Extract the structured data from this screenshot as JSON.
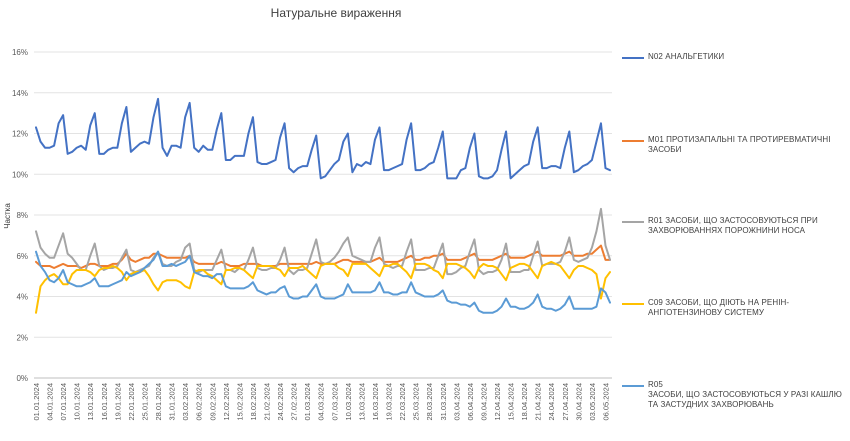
{
  "chart_data": {
    "type": "line",
    "title": "Натуральне вираження",
    "ylabel": "Частка",
    "xlabel": "",
    "ylim": [
      0,
      16
    ],
    "y_ticks": [
      "0%",
      "2%",
      "4%",
      "6%",
      "8%",
      "10%",
      "12%",
      "14%",
      "16%"
    ],
    "grid": "horizontal",
    "legend_position": "right",
    "x": [
      "01.01.2024",
      "02.01.2024",
      "03.01.2024",
      "04.01.2024",
      "05.01.2024",
      "06.01.2024",
      "07.01.2024",
      "08.01.2024",
      "09.01.2024",
      "10.01.2024",
      "11.01.2024",
      "12.01.2024",
      "13.01.2024",
      "14.01.2024",
      "15.01.2024",
      "16.01.2024",
      "17.01.2024",
      "18.01.2024",
      "19.01.2024",
      "20.01.2024",
      "21.01.2024",
      "22.01.2024",
      "23.01.2024",
      "24.01.2024",
      "25.01.2024",
      "26.01.2024",
      "27.01.2024",
      "28.01.2024",
      "29.01.2024",
      "30.01.2024",
      "31.01.2024",
      "01.02.2024",
      "02.02.2024",
      "03.02.2024",
      "04.02.2024",
      "05.02.2024",
      "06.02.2024",
      "07.02.2024",
      "08.02.2024",
      "09.02.2024",
      "10.02.2024",
      "11.02.2024",
      "12.02.2024",
      "13.02.2024",
      "14.02.2024",
      "15.02.2024",
      "16.02.2024",
      "17.02.2024",
      "18.02.2024",
      "19.02.2024",
      "20.02.2024",
      "21.02.2024",
      "22.02.2024",
      "23.02.2024",
      "24.02.2024",
      "25.02.2024",
      "26.02.2024",
      "27.02.2024",
      "28.02.2024",
      "29.02.2024",
      "01.03.2024",
      "02.03.2024",
      "03.03.2024",
      "04.03.2024",
      "05.03.2024",
      "06.03.2024",
      "07.03.2024",
      "08.03.2024",
      "09.03.2024",
      "10.03.2024",
      "11.03.2024",
      "12.03.2024",
      "13.03.2024",
      "14.03.2024",
      "15.03.2024",
      "16.03.2024",
      "17.03.2024",
      "18.03.2024",
      "19.03.2024",
      "20.03.2024",
      "21.03.2024",
      "22.03.2024",
      "23.03.2024",
      "24.03.2024",
      "25.03.2024",
      "26.03.2024",
      "27.03.2024",
      "28.03.2024",
      "29.03.2024",
      "30.03.2024",
      "31.03.2024",
      "01.04.2024",
      "02.04.2024",
      "03.04.2024",
      "04.04.2024",
      "05.04.2024",
      "06.04.2024",
      "07.04.2024",
      "08.04.2024",
      "09.04.2024",
      "10.04.2024",
      "11.04.2024",
      "12.04.2024",
      "13.04.2024",
      "14.04.2024",
      "15.04.2024",
      "16.04.2024",
      "17.04.2024",
      "18.04.2024",
      "19.04.2024",
      "20.04.2024",
      "21.04.2024",
      "22.04.2024",
      "23.04.2024",
      "24.04.2024",
      "25.04.2024",
      "26.04.2024",
      "27.04.2024",
      "28.04.2024",
      "29.04.2024",
      "30.04.2024",
      "01.05.2024",
      "02.05.2024",
      "03.05.2024",
      "04.05.2024",
      "05.05.2024",
      "06.05.2024",
      "07.05.2024"
    ],
    "x_tick_labels": [
      "01.01.2024",
      "04.01.2024",
      "07.01.2024",
      "10.01.2024",
      "13.01.2024",
      "16.01.2024",
      "19.01.2024",
      "22.01.2024",
      "25.01.2024",
      "28.01.2024",
      "31.01.2024",
      "03.02.2024",
      "06.02.2024",
      "09.02.2024",
      "12.02.2024",
      "15.02.2024",
      "18.02.2024",
      "21.02.2024",
      "24.02.2024",
      "27.02.2024",
      "01.03.2024",
      "04.03.2024",
      "07.03.2024",
      "10.03.2024",
      "13.03.2024",
      "16.03.2024",
      "19.03.2024",
      "22.03.2024",
      "25.03.2024",
      "28.03.2024",
      "31.03.2024",
      "03.04.2024",
      "06.04.2024",
      "09.04.2024",
      "12.04.2024",
      "15.04.2024",
      "18.04.2024",
      "21.04.2024",
      "24.04.2024",
      "27.04.2024",
      "30.04.2024",
      "03.05.2024",
      "06.05.2024"
    ],
    "series": [
      {
        "name": "N02 АНАЛЬГЕТИКИ",
        "color": "#4472C4",
        "values": [
          12.3,
          11.6,
          11.3,
          11.3,
          11.4,
          12.5,
          12.9,
          11.0,
          11.1,
          11.3,
          11.4,
          11.2,
          12.4,
          13.0,
          11.0,
          11.0,
          11.2,
          11.3,
          11.3,
          12.5,
          13.3,
          11.1,
          11.3,
          11.5,
          11.6,
          11.5,
          12.8,
          13.7,
          11.3,
          10.9,
          11.4,
          11.4,
          11.3,
          12.8,
          13.5,
          11.3,
          11.1,
          11.4,
          11.2,
          11.2,
          12.2,
          13.0,
          10.7,
          10.7,
          10.9,
          10.9,
          10.9,
          12.0,
          12.8,
          10.6,
          10.5,
          10.5,
          10.6,
          10.7,
          11.8,
          12.5,
          10.3,
          10.1,
          10.3,
          10.4,
          10.4,
          11.2,
          11.9,
          9.8,
          9.9,
          10.2,
          10.5,
          10.7,
          11.6,
          12.0,
          10.1,
          10.5,
          10.4,
          10.6,
          10.5,
          11.7,
          12.3,
          10.2,
          10.2,
          10.3,
          10.4,
          10.5,
          11.7,
          12.5,
          10.2,
          10.2,
          10.3,
          10.5,
          10.6,
          11.3,
          12.1,
          9.8,
          9.8,
          9.8,
          10.2,
          10.3,
          11.3,
          12.0,
          9.9,
          9.8,
          9.8,
          9.9,
          10.2,
          11.2,
          12.1,
          9.8,
          10.0,
          10.2,
          10.4,
          10.5,
          11.6,
          12.3,
          10.3,
          10.3,
          10.4,
          10.4,
          10.3,
          11.3,
          12.1,
          10.1,
          10.2,
          10.4,
          10.5,
          10.7,
          11.6,
          12.5,
          10.3,
          10.2
        ]
      },
      {
        "name": "M01 ПРОТИЗАПАЛЬНІ ТА ПРОТИРЕВМАТИЧНІ ЗАСОБИ",
        "color": "#ED7D31",
        "values": [
          5.7,
          5.5,
          5.5,
          5.5,
          5.4,
          5.5,
          5.6,
          5.5,
          5.5,
          5.5,
          5.4,
          5.5,
          5.6,
          5.6,
          5.5,
          5.5,
          5.5,
          5.6,
          5.6,
          5.8,
          6.1,
          5.8,
          5.7,
          5.8,
          5.9,
          5.9,
          6.1,
          6.1,
          6.0,
          5.9,
          5.9,
          5.9,
          5.9,
          5.9,
          6.0,
          5.7,
          5.6,
          5.6,
          5.6,
          5.6,
          5.6,
          5.7,
          5.6,
          5.5,
          5.5,
          5.5,
          5.6,
          5.6,
          5.6,
          5.6,
          5.5,
          5.5,
          5.5,
          5.5,
          5.6,
          5.6,
          5.6,
          5.6,
          5.6,
          5.6,
          5.6,
          5.6,
          5.7,
          5.6,
          5.6,
          5.6,
          5.6,
          5.7,
          5.8,
          5.8,
          5.7,
          5.7,
          5.7,
          5.7,
          5.7,
          5.8,
          5.9,
          5.7,
          5.7,
          5.7,
          5.7,
          5.8,
          5.9,
          6.0,
          5.8,
          5.8,
          5.9,
          5.9,
          6.0,
          6.0,
          6.1,
          5.8,
          5.8,
          5.8,
          5.8,
          5.9,
          6.0,
          6.1,
          5.8,
          5.8,
          5.8,
          5.8,
          5.9,
          6.0,
          6.1,
          5.9,
          5.9,
          5.9,
          5.9,
          6.0,
          6.1,
          6.2,
          6.0,
          6.0,
          6.0,
          6.0,
          6.0,
          6.1,
          6.2,
          6.0,
          6.0,
          6.0,
          6.1,
          6.1,
          6.3,
          6.5,
          5.8,
          5.8
        ]
      },
      {
        "name": "R01 ЗАСОБИ, ЩО ЗАСТОСОВУЮТЬСЯ ПРИ ЗАХВОРЮВАННЯХ ПОРОЖНИНИ НОСА",
        "color": "#A5A5A5",
        "values": [
          7.2,
          6.4,
          6.1,
          5.9,
          5.9,
          6.5,
          7.1,
          6.1,
          5.9,
          5.6,
          5.3,
          5.3,
          6.0,
          6.6,
          5.5,
          5.3,
          5.4,
          5.4,
          5.5,
          5.9,
          6.3,
          5.3,
          5.2,
          5.3,
          5.4,
          5.5,
          5.9,
          6.2,
          5.6,
          5.5,
          5.5,
          5.7,
          5.8,
          6.4,
          6.6,
          5.3,
          5.2,
          5.3,
          5.3,
          5.3,
          5.8,
          6.3,
          5.3,
          5.3,
          5.2,
          5.4,
          5.3,
          5.8,
          6.4,
          5.4,
          5.3,
          5.3,
          5.4,
          5.4,
          5.8,
          6.4,
          5.3,
          5.1,
          5.3,
          5.3,
          5.4,
          6.1,
          6.8,
          5.7,
          5.6,
          5.7,
          5.9,
          6.2,
          6.6,
          6.9,
          6.0,
          5.9,
          5.8,
          5.7,
          5.7,
          6.4,
          6.9,
          5.6,
          5.5,
          5.4,
          5.5,
          5.5,
          6.2,
          6.8,
          5.3,
          5.3,
          5.3,
          5.4,
          5.4,
          6.0,
          6.6,
          5.1,
          5.1,
          5.2,
          5.4,
          5.5,
          6.2,
          6.8,
          5.3,
          5.1,
          5.2,
          5.2,
          5.3,
          5.8,
          6.6,
          5.2,
          5.2,
          5.2,
          5.3,
          5.3,
          6.0,
          6.7,
          5.5,
          5.6,
          5.6,
          5.6,
          5.7,
          6.2,
          6.9,
          5.8,
          5.7,
          5.8,
          5.9,
          6.4,
          7.2,
          8.3,
          6.5,
          5.8
        ]
      },
      {
        "name": "C09 ЗАСОБИ, ЩО ДІЮТЬ НА РЕНІН-АНГІОТЕНЗИНОВУ СИСТЕМУ",
        "color": "#FFC000",
        "values": [
          3.2,
          4.5,
          4.8,
          5.0,
          5.1,
          4.9,
          4.6,
          4.6,
          5.1,
          5.3,
          5.3,
          5.3,
          5.2,
          5.0,
          5.3,
          5.4,
          5.4,
          5.5,
          5.4,
          5.2,
          4.8,
          5.1,
          5.2,
          5.2,
          5.3,
          5.0,
          4.6,
          4.3,
          4.7,
          4.8,
          4.8,
          4.8,
          4.7,
          4.5,
          4.4,
          5.2,
          5.3,
          5.3,
          5.1,
          5.0,
          4.8,
          4.6,
          5.3,
          5.3,
          5.4,
          5.4,
          5.3,
          5.1,
          4.9,
          5.5,
          5.5,
          5.5,
          5.5,
          5.4,
          5.3,
          5.0,
          5.4,
          5.4,
          5.4,
          5.5,
          5.3,
          5.1,
          4.9,
          5.5,
          5.6,
          5.6,
          5.6,
          5.4,
          5.3,
          5.0,
          5.6,
          5.6,
          5.6,
          5.6,
          5.4,
          5.2,
          5.0,
          5.5,
          5.5,
          5.6,
          5.6,
          5.4,
          5.2,
          4.9,
          5.6,
          5.6,
          5.6,
          5.5,
          5.3,
          5.2,
          4.9,
          5.6,
          5.6,
          5.6,
          5.5,
          5.4,
          5.2,
          4.9,
          5.4,
          5.6,
          5.5,
          5.5,
          5.4,
          5.1,
          4.8,
          5.4,
          5.5,
          5.6,
          5.6,
          5.5,
          5.2,
          4.9,
          5.5,
          5.6,
          5.7,
          5.6,
          5.5,
          5.2,
          4.9,
          5.3,
          5.5,
          5.5,
          5.4,
          5.3,
          5.1,
          3.9,
          4.9,
          5.2
        ]
      },
      {
        "name": "R05\nЗАСОБИ, ЩО ЗАСТОСОВУЮТЬСЯ У РАЗІ КАШЛЮ ТА ЗАСТУДНИХ ЗАХВОРЮВАНЬ",
        "color": "#5B9BD5",
        "values": [
          6.2,
          5.5,
          5.2,
          4.8,
          4.7,
          4.9,
          5.3,
          4.7,
          4.6,
          4.5,
          4.5,
          4.6,
          4.7,
          4.9,
          4.5,
          4.5,
          4.5,
          4.6,
          4.7,
          4.8,
          5.2,
          5.0,
          5.1,
          5.2,
          5.4,
          5.6,
          5.8,
          6.2,
          5.5,
          5.5,
          5.6,
          5.5,
          5.6,
          5.7,
          6.0,
          5.2,
          5.1,
          5.0,
          5.0,
          4.9,
          5.1,
          5.1,
          4.5,
          4.4,
          4.4,
          4.4,
          4.4,
          4.5,
          4.7,
          4.3,
          4.2,
          4.1,
          4.2,
          4.2,
          4.4,
          4.5,
          4.0,
          3.9,
          3.9,
          4.0,
          4.0,
          4.3,
          4.6,
          4.0,
          3.9,
          3.9,
          3.9,
          4.0,
          4.1,
          4.6,
          4.2,
          4.2,
          4.2,
          4.2,
          4.2,
          4.3,
          4.7,
          4.2,
          4.2,
          4.1,
          4.1,
          4.2,
          4.2,
          4.7,
          4.2,
          4.1,
          4.0,
          4.0,
          4.0,
          4.1,
          4.3,
          3.8,
          3.7,
          3.7,
          3.6,
          3.6,
          3.5,
          3.7,
          3.3,
          3.2,
          3.2,
          3.2,
          3.3,
          3.5,
          3.9,
          3.5,
          3.5,
          3.4,
          3.4,
          3.5,
          3.7,
          4.1,
          3.5,
          3.4,
          3.4,
          3.3,
          3.4,
          3.6,
          4.0,
          3.4,
          3.4,
          3.4,
          3.4,
          3.4,
          3.5,
          4.4,
          4.2,
          3.7
        ]
      }
    ]
  }
}
